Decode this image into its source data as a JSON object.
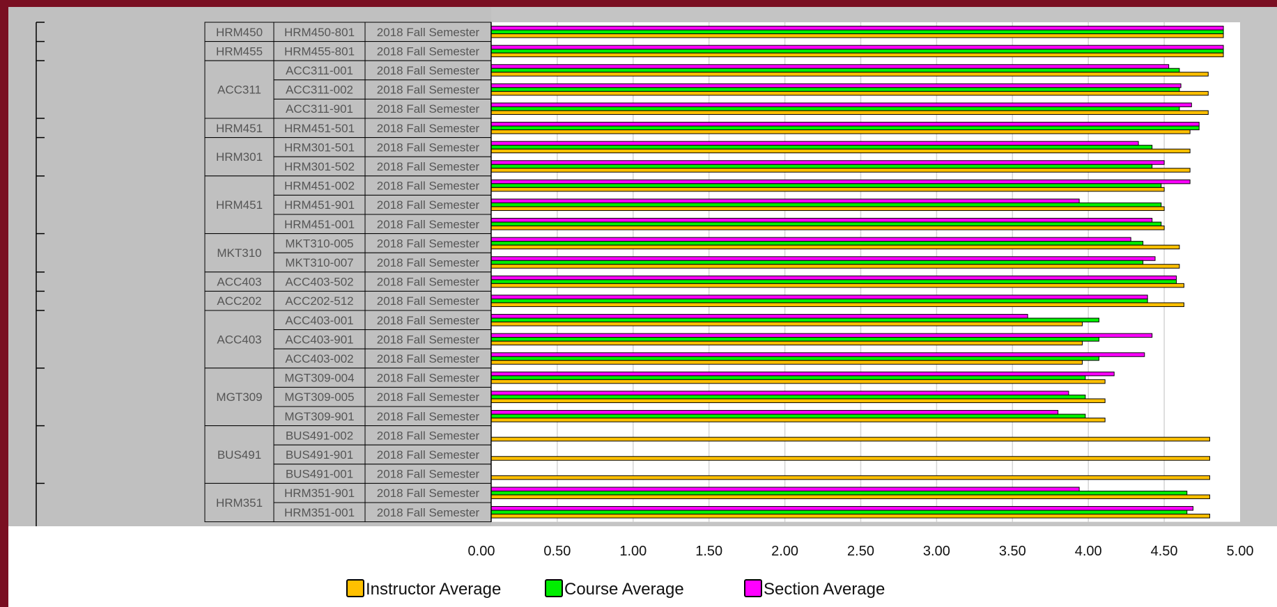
{
  "chart_data": {
    "type": "bar",
    "orientation": "horizontal",
    "title": "",
    "xlabel": "",
    "ylabel": "",
    "xlim": [
      0,
      5
    ],
    "xticks": [
      "0.00",
      "0.50",
      "1.00",
      "1.50",
      "2.00",
      "2.50",
      "3.00",
      "3.50",
      "4.00",
      "4.50",
      "5.00"
    ],
    "grid": true,
    "legend_position": "bottom",
    "groups": [
      {
        "course": "HRM450",
        "rows": [
          {
            "section": "HRM450-801",
            "term": "2018 Fall Semester",
            "section_avg": 4.89,
            "course_avg": 4.89,
            "instructor_avg": 4.89
          }
        ]
      },
      {
        "course": "HRM455",
        "rows": [
          {
            "section": "HRM455-801",
            "term": "2018 Fall Semester",
            "section_avg": 4.89,
            "course_avg": 4.89,
            "instructor_avg": 4.89
          }
        ]
      },
      {
        "course": "ACC311",
        "rows": [
          {
            "section": "ACC311-001",
            "term": "2018 Fall Semester",
            "section_avg": 4.53,
            "course_avg": 4.6,
            "instructor_avg": 4.79
          },
          {
            "section": "ACC311-002",
            "term": "2018 Fall Semester",
            "section_avg": 4.61,
            "course_avg": 4.6,
            "instructor_avg": 4.79
          },
          {
            "section": "ACC311-901",
            "term": "2018 Fall Semester",
            "section_avg": 4.68,
            "course_avg": 4.6,
            "instructor_avg": 4.79
          }
        ]
      },
      {
        "course": "HRM451",
        "rows": [
          {
            "section": "HRM451-501",
            "term": "2018 Fall Semester",
            "section_avg": 4.73,
            "course_avg": 4.73,
            "instructor_avg": 4.67
          }
        ]
      },
      {
        "course": "HRM301",
        "rows": [
          {
            "section": "HRM301-501",
            "term": "2018 Fall Semester",
            "section_avg": 4.33,
            "course_avg": 4.42,
            "instructor_avg": 4.67
          },
          {
            "section": "HRM301-502",
            "term": "2018 Fall Semester",
            "section_avg": 4.5,
            "course_avg": 4.42,
            "instructor_avg": 4.67
          }
        ]
      },
      {
        "course": "HRM451",
        "rows": [
          {
            "section": "HRM451-002",
            "term": "2018 Fall Semester",
            "section_avg": 4.67,
            "course_avg": 4.48,
            "instructor_avg": 4.5
          },
          {
            "section": "HRM451-901",
            "term": "2018 Fall Semester",
            "section_avg": 3.94,
            "course_avg": 4.48,
            "instructor_avg": 4.5
          },
          {
            "section": "HRM451-001",
            "term": "2018 Fall Semester",
            "section_avg": 4.42,
            "course_avg": 4.48,
            "instructor_avg": 4.5
          }
        ]
      },
      {
        "course": "MKT310",
        "rows": [
          {
            "section": "MKT310-005",
            "term": "2018 Fall Semester",
            "section_avg": 4.28,
            "course_avg": 4.36,
            "instructor_avg": 4.6
          },
          {
            "section": "MKT310-007",
            "term": "2018 Fall Semester",
            "section_avg": 4.44,
            "course_avg": 4.36,
            "instructor_avg": 4.6
          }
        ]
      },
      {
        "course": "ACC403",
        "rows": [
          {
            "section": "ACC403-502",
            "term": "2018 Fall Semester",
            "section_avg": 4.58,
            "course_avg": 4.58,
            "instructor_avg": 4.63
          }
        ]
      },
      {
        "course": "ACC202",
        "rows": [
          {
            "section": "ACC202-512",
            "term": "2018 Fall Semester",
            "section_avg": 4.39,
            "course_avg": 4.39,
            "instructor_avg": 4.63
          }
        ]
      },
      {
        "course": "ACC403",
        "rows": [
          {
            "section": "ACC403-001",
            "term": "2018 Fall Semester",
            "section_avg": 3.6,
            "course_avg": 4.07,
            "instructor_avg": 3.96
          },
          {
            "section": "ACC403-901",
            "term": "2018 Fall Semester",
            "section_avg": 4.42,
            "course_avg": 4.07,
            "instructor_avg": 3.96
          },
          {
            "section": "ACC403-002",
            "term": "2018 Fall Semester",
            "section_avg": 4.37,
            "course_avg": 4.07,
            "instructor_avg": 3.96
          }
        ]
      },
      {
        "course": "MGT309",
        "rows": [
          {
            "section": "MGT309-004",
            "term": "2018 Fall Semester",
            "section_avg": 4.17,
            "course_avg": 3.98,
            "instructor_avg": 4.11
          },
          {
            "section": "MGT309-005",
            "term": "2018 Fall Semester",
            "section_avg": 3.87,
            "course_avg": 3.98,
            "instructor_avg": 4.11
          },
          {
            "section": "MGT309-901",
            "term": "2018 Fall Semester",
            "section_avg": 3.8,
            "course_avg": 3.98,
            "instructor_avg": 4.11
          }
        ]
      },
      {
        "course": "BUS491",
        "rows": [
          {
            "section": "BUS491-002",
            "term": "2018 Fall Semester",
            "section_avg": null,
            "course_avg": null,
            "instructor_avg": 4.8
          },
          {
            "section": "BUS491-901",
            "term": "2018 Fall Semester",
            "section_avg": null,
            "course_avg": null,
            "instructor_avg": 4.8
          },
          {
            "section": "BUS491-001",
            "term": "2018 Fall Semester",
            "section_avg": null,
            "course_avg": null,
            "instructor_avg": 4.8
          }
        ]
      },
      {
        "course": "HRM351",
        "rows": [
          {
            "section": "HRM351-901",
            "term": "2018 Fall Semester",
            "section_avg": 3.94,
            "course_avg": 4.65,
            "instructor_avg": 4.8
          },
          {
            "section": "HRM351-001",
            "term": "2018 Fall Semester",
            "section_avg": 4.69,
            "course_avg": 4.65,
            "instructor_avg": 4.8
          }
        ]
      }
    ],
    "series": [
      {
        "key": "section_avg",
        "name": "Section Average",
        "color": "#ff00ff"
      },
      {
        "key": "course_avg",
        "name": "Course Average",
        "color": "#00ee00"
      },
      {
        "key": "instructor_avg",
        "name": "Instructor Average",
        "color": "#ffc000"
      }
    ],
    "legend": [
      {
        "name": "Instructor Average",
        "color": "#ffc000"
      },
      {
        "name": "Course Average",
        "color": "#00ee00"
      },
      {
        "name": "Section Average",
        "color": "#ff00ff"
      }
    ]
  }
}
